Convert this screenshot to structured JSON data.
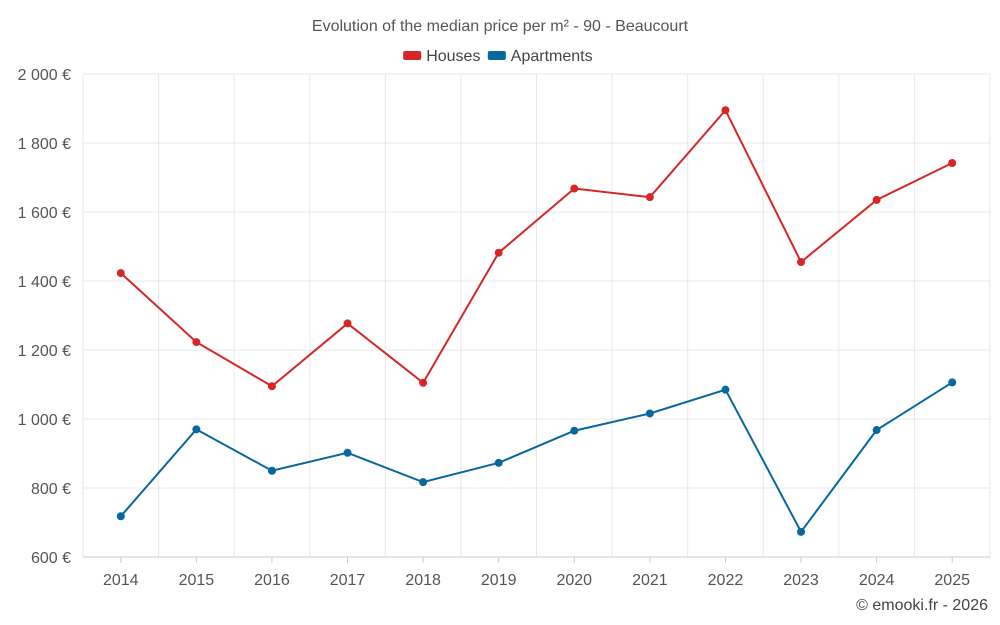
{
  "chart_data": {
    "type": "line",
    "title": "Evolution of the median price per m² - 90 - Beaucourt",
    "xlabel": "",
    "ylabel": "",
    "categories": [
      "2014",
      "2015",
      "2016",
      "2017",
      "2018",
      "2019",
      "2020",
      "2021",
      "2022",
      "2023",
      "2024",
      "2025"
    ],
    "ylim": [
      600,
      2000
    ],
    "yticks": [
      600,
      800,
      1000,
      1200,
      1400,
      1600,
      1800,
      2000
    ],
    "ytick_labels": [
      "600 €",
      "800 €",
      "1 000 €",
      "1 200 €",
      "1 400 €",
      "1 600 €",
      "1 800 €",
      "2 000 €"
    ],
    "grid": true,
    "legend_position": "top-center",
    "series": [
      {
        "name": "Houses",
        "color": "#d62728",
        "values": [
          1423,
          1223,
          1095,
          1277,
          1105,
          1482,
          1668,
          1643,
          1895,
          1455,
          1635,
          1742
        ]
      },
      {
        "name": "Apartments",
        "color": "#08679d",
        "values": [
          718,
          970,
          850,
          902,
          817,
          873,
          966,
          1016,
          1085,
          673,
          968,
          1106
        ]
      }
    ]
  },
  "credit": "© emooki.fr - 2026"
}
